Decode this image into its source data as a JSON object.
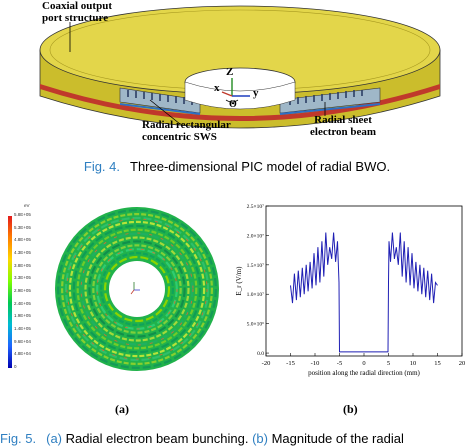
{
  "fig4": {
    "labels": {
      "coaxial": "Coaxial output\nport structure",
      "sws": "Radial rectangular\nconcentric SWS",
      "beam": "Radial sheet\nelectron beam",
      "axis_z": "Z",
      "axis_x": "x",
      "axis_y": "y",
      "axis_theta": "Θ"
    },
    "caption_num": "Fig. 4.",
    "caption_text": "Three-dimensional PIC model of radial BWO.",
    "colors": {
      "body": "#d8c93a",
      "top": "#e3d64a",
      "ring": "#c0392b"
    }
  },
  "fig5": {
    "colorbar_unit": "eV",
    "colorbar_ticks": [
      "5.8E+05",
      "5.3E+05",
      "4.8E+05",
      "4.3E+05",
      "3.8E+05",
      "3.3E+05",
      "2.9E+05",
      "2.4E+05",
      "1.9E+05",
      "1.4E+05",
      "9.6E+04",
      "4.8E+04",
      "0"
    ],
    "sub_a": "(a)",
    "sub_b": "(b)",
    "caption_num": "Fig. 5.",
    "caption_a_ref": "(a)",
    "caption_a_text": " Radial electron beam bunching. ",
    "caption_b_ref": "(b)",
    "caption_b_text": " Magnitude of the radial"
  },
  "chart_data": {
    "type": "line",
    "xlabel": "position along the radial direction (mm)",
    "ylabel": "E_r (V/m)",
    "xlim": [
      -20,
      20
    ],
    "ylim": [
      -500000.0,
      25000000.0
    ],
    "x_ticks": [
      "-20",
      "-15",
      "-10",
      "-5",
      "0",
      "5",
      "10",
      "15",
      "20"
    ],
    "y_ticks": [
      "0.0",
      "5.0×10⁶",
      "1.0×10⁷",
      "1.5×10⁷",
      "2.0×10⁷",
      "2.5×10⁷"
    ],
    "y_tick_values": [
      0,
      5000000,
      10000000,
      15000000,
      20000000,
      25000000
    ],
    "series": [
      {
        "color": "#1f1fb4",
        "x": [
          -15,
          -14.6,
          -14.2,
          -13.8,
          -13.4,
          -13,
          -12.6,
          -12.2,
          -11.8,
          -11.4,
          -11,
          -10.6,
          -10.2,
          -9.8,
          -9.4,
          -9,
          -8.6,
          -8.2,
          -7.8,
          -7.4,
          -7,
          -6.6,
          -6.2,
          -5.8,
          -5.4,
          -5.1,
          -5.0,
          -4.9,
          4.9,
          5.0,
          5.1,
          5.4,
          5.8,
          6.2,
          6.6,
          7,
          7.4,
          7.8,
          8.2,
          8.6,
          9,
          9.4,
          9.8,
          10.2,
          10.6,
          11,
          11.4,
          11.8,
          12.2,
          12.6,
          13,
          13.4,
          13.8,
          14.2,
          14.6,
          15
        ],
        "y": [
          11500000,
          8500000,
          13500000,
          9000000,
          14000000,
          9500000,
          14500000,
          10000000,
          15000000,
          10500000,
          15500000,
          11000000,
          17000000,
          11500000,
          18000000,
          12000000,
          19000000,
          13000000,
          20500000,
          15000000,
          18000000,
          16000000,
          20500000,
          15500000,
          19000000,
          12000000,
          200000,
          200000,
          200000,
          12000000,
          19000000,
          15500000,
          20500000,
          16000000,
          18000000,
          15000000,
          20500000,
          13000000,
          19000000,
          12000000,
          18000000,
          11500000,
          17000000,
          11000000,
          15500000,
          10500000,
          15000000,
          10000000,
          14500000,
          9500000,
          14000000,
          9000000,
          13500000,
          8500000,
          12000000,
          11500000
        ]
      }
    ]
  }
}
